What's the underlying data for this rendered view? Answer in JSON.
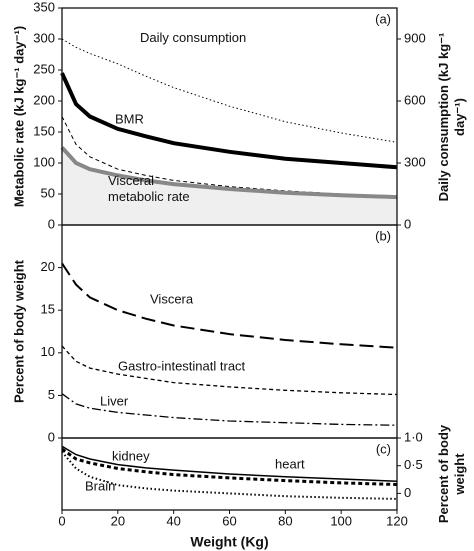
{
  "chart_data": [
    {
      "type": "line",
      "panel_label": "(a)",
      "y_label": "Metabolic rate (kJ kg⁻¹ day⁻¹)",
      "y2_label": "Daily consumption (kJ kg⁻¹ day⁻¹)",
      "ylim": [
        0,
        350
      ],
      "yticks": [
        0,
        50,
        100,
        150,
        200,
        250,
        300,
        350
      ],
      "y2lim": [
        0,
        1050
      ],
      "y2ticks": [
        0,
        300,
        600,
        900
      ],
      "x": [
        0,
        5,
        10,
        20,
        30,
        40,
        60,
        80,
        100,
        120
      ],
      "series": [
        {
          "name": "Daily consumption",
          "axis": "y2",
          "color": "#000000",
          "line_style": "dotted",
          "line_width": 1,
          "values": [
            900,
            860,
            830,
            780,
            720,
            665,
            575,
            500,
            445,
            400
          ]
        },
        {
          "name": "BMR",
          "color": "#000000",
          "line_style": "solid",
          "line_width": 4,
          "values": [
            245,
            195,
            175,
            155,
            143,
            132,
            118,
            107,
            100,
            93
          ]
        },
        {
          "color": "#000000",
          "line_style": "dashed",
          "line_width": 1,
          "values": [
            175,
            130,
            110,
            90,
            80,
            72,
            62,
            55,
            50,
            46
          ]
        },
        {
          "name": "Visceral metabolic rate",
          "color": "#888888",
          "fill_color": "#efefef",
          "line_style": "solid",
          "line_width": 4,
          "values": [
            125,
            100,
            90,
            80,
            72,
            66,
            58,
            52,
            48,
            45
          ]
        }
      ]
    },
    {
      "type": "line",
      "panel_label": "(b)",
      "y_label": "Percent of body weight",
      "ylim": [
        0,
        25
      ],
      "yticks": [
        0,
        5,
        10,
        15,
        20
      ],
      "x": [
        0,
        5,
        10,
        20,
        30,
        40,
        60,
        80,
        100,
        120
      ],
      "series": [
        {
          "name": "Viscera",
          "color": "#000000",
          "line_style": "longdash",
          "line_width": 2,
          "values": [
            20.5,
            18,
            16.5,
            15,
            14,
            13.2,
            12.2,
            11.5,
            11,
            10.6
          ]
        },
        {
          "name": "Gastro-intestinatl  tract",
          "color": "#000000",
          "line_style": "dashed",
          "line_width": 1.3,
          "values": [
            10.8,
            9,
            8.2,
            7.5,
            7,
            6.5,
            6,
            5.6,
            5.3,
            5.1
          ]
        },
        {
          "name": "Liver",
          "color": "#000000",
          "line_style": "dashdot",
          "line_width": 1.3,
          "values": [
            5.2,
            4,
            3.5,
            3,
            2.7,
            2.4,
            2,
            1.8,
            1.6,
            1.5
          ]
        }
      ]
    },
    {
      "type": "line",
      "panel_label": "(c)",
      "y2_label": "Percent of body weight",
      "x_label": "Weight (Kg)",
      "xlim": [
        0,
        120
      ],
      "xticks": [
        0,
        20,
        40,
        60,
        80,
        100,
        120
      ],
      "y2lim": [
        -0.3,
        1.0
      ],
      "y2ticks": [
        {
          "value": 1.0,
          "label": "1·0"
        },
        {
          "value": 0.5,
          "label": "0·5"
        },
        0
      ],
      "x": [
        0,
        5,
        10,
        20,
        30,
        40,
        60,
        80,
        100,
        120
      ],
      "series": [
        {
          "name": "kidney",
          "axis": "y2",
          "color": "#000000",
          "line_style": "solid",
          "line_width": 1.5,
          "values": [
            0.85,
            0.7,
            0.62,
            0.52,
            0.46,
            0.42,
            0.35,
            0.3,
            0.26,
            0.22
          ]
        },
        {
          "name": "heart",
          "axis": "y2",
          "color": "#000000",
          "line_style": "dashed",
          "line_width": 3,
          "values": [
            0.8,
            0.62,
            0.55,
            0.45,
            0.39,
            0.34,
            0.28,
            0.23,
            0.19,
            0.16
          ]
        },
        {
          "name": "Brain",
          "axis": "y2",
          "color": "#000000",
          "line_style": "dotted",
          "line_width": 2,
          "values": [
            0.75,
            0.45,
            0.3,
            0.15,
            0.09,
            0.05,
            0,
            -0.05,
            -0.08,
            -0.1
          ]
        }
      ]
    }
  ]
}
